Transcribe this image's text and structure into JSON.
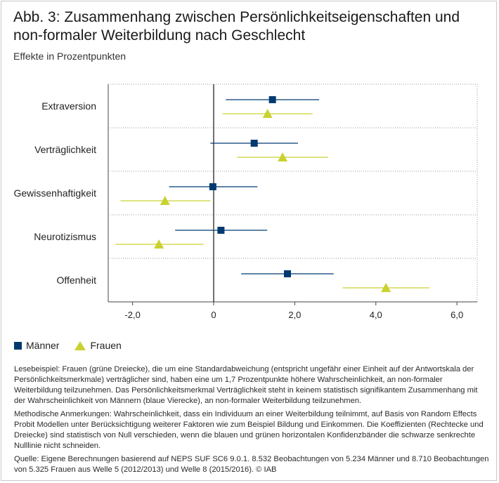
{
  "header": {
    "title": "Abb. 3: Zusammenhang zwischen Persönlichkeitseigenschaften und non-formaler Weiterbildung nach Geschlecht",
    "subtitle": "Effekte in Prozentpunkten"
  },
  "legend": {
    "men_label": "Männer",
    "women_label": "Frauen"
  },
  "notes": {
    "reading_example": "Lesebeispiel: Frauen (grüne Dreiecke), die um eine Standardabweichung (entspricht ungefähr einer Einheit auf der Antwortskala der Persönlichkeitsmerkmale) verträglicher sind, haben eine um 1,7 Prozentpunkte höhere Wahrscheinlichkeit, an non-formaler Weiterbildung teilzunehmen. Das Persönlichkeitsmerkmal Verträglichkeit steht in keinem statistisch signifikantem Zusammenhang mit der Wahrscheinlichkeit von Männern (blaue Vierecke), an non-formaler Weiterbildung teilzunehmen.",
    "methods": "Methodische Anmerkungen: Wahrscheinlichkeit, dass ein Individuum an einer Weiterbildung teilnimmt, auf Basis von Random Effects Probit Modellen unter Berücksichtigung weiterer Faktoren wie zum Beispiel Bildung und Einkommen. Die Koeffizienten (Rechtecke und Dreiecke) sind statistisch von Null verschieden, wenn die blauen und grünen horizontalen Konfidenzbänder die schwarze senkrechte Nulllinie nicht schneiden.",
    "source": "Quelle: Eigene Berechnungen basierend auf NEPS SUF SC6 9.0.1. 8.532 Beobachtungen von 5.234 Männer und 8.710 Beobachtungen von 5.325 Frauen aus Welle 5 (2012/2013) und Welle 8 (2015/2016). © IAB"
  },
  "chart_data": {
    "type": "scatter",
    "title": "",
    "xlabel": "",
    "ylabel": "",
    "xlim": [
      -2.6,
      6.5
    ],
    "xticks": [
      -2.0,
      0,
      2.0,
      4.0,
      6.0
    ],
    "xtick_labels": [
      "-2,0",
      "0",
      "2,0",
      "4,0",
      "6,0"
    ],
    "categories": [
      "Extraversion",
      "Verträglichkeit",
      "Gewissenhaftigkeit",
      "Neurotizismus",
      "Offenheit"
    ],
    "grid": "horizontal dotted separators between categories",
    "legend_position": "bottom-left",
    "series": [
      {
        "name": "Männer",
        "marker": "square",
        "color": "#003a70",
        "values": [
          1.45,
          1.0,
          -0.02,
          0.18,
          1.82
        ],
        "ci_low": [
          0.3,
          -0.08,
          -1.1,
          -0.95,
          0.68
        ],
        "ci_high": [
          2.6,
          2.08,
          1.08,
          1.32,
          2.96
        ]
      },
      {
        "name": "Frauen",
        "marker": "triangle",
        "color": "#c9d230",
        "values": [
          1.33,
          1.7,
          -1.2,
          -1.35,
          4.25
        ],
        "ci_low": [
          0.22,
          0.58,
          -2.3,
          -2.42,
          3.18
        ],
        "ci_high": [
          2.44,
          2.82,
          -0.08,
          -0.25,
          5.32
        ]
      }
    ]
  }
}
